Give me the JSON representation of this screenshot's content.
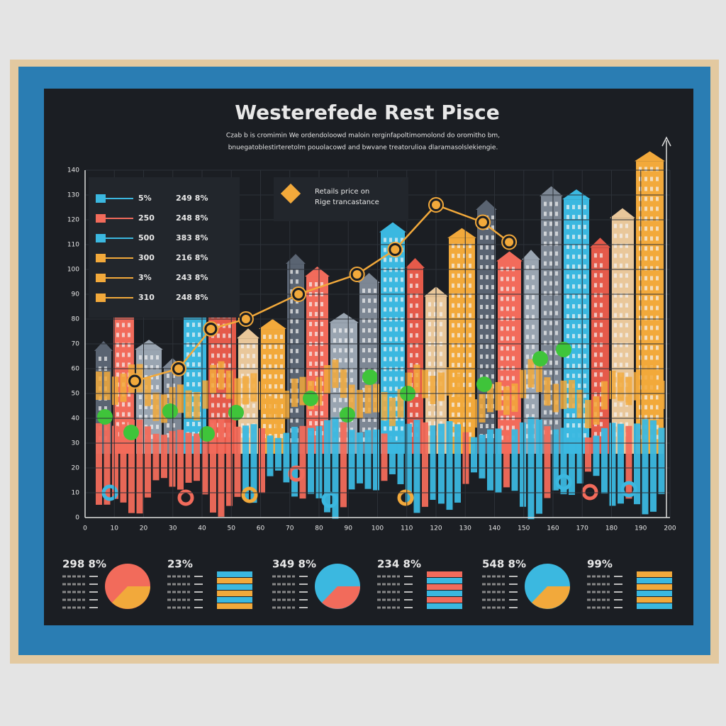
{
  "chart_data": {
    "type": "line",
    "title": "Westerefede Rest Pisce",
    "subtitle": [
      "Czab b is cromimin We ordendoloowd maloin rerginfapoltimomolond do oromitho bm,",
      "bnuegatoblestirteretolm pouolacowd and bwvane treatorulioa dlaramasolslekiengie."
    ],
    "x": [
      17,
      32,
      43,
      55,
      73,
      93,
      106,
      120,
      136,
      145
    ],
    "series": [
      {
        "color": "#f2a93b",
        "values": [
          55,
          60,
          76,
          80,
          90,
          98,
          108,
          126,
          119,
          111
        ]
      }
    ],
    "xlim": [
      0,
      200
    ],
    "ylim": [
      0,
      140
    ],
    "xticks": [
      0,
      10,
      20,
      30,
      40,
      50,
      60,
      70,
      80,
      90,
      100,
      110,
      120,
      130,
      140,
      150,
      160,
      170,
      180,
      190,
      200
    ],
    "yticks": [
      0,
      10,
      20,
      30,
      40,
      50,
      60,
      70,
      80,
      90,
      100,
      110,
      120,
      130,
      140
    ],
    "grid": true,
    "annotation": [
      "Retails price on",
      "Rige trancastance"
    ],
    "legend_rows": [
      {
        "color": "#3bb8e0",
        "label": "5%",
        "value_text": "249 8%"
      },
      {
        "color": "#f26b5b",
        "label": "250",
        "value_text": "248 8%"
      },
      {
        "color": "#3bb8e0",
        "label": "500",
        "value_text": "383 8%"
      },
      {
        "color": "#f2a93b",
        "label": "300",
        "value_text": "216 8%"
      },
      {
        "color": "#f2a93b",
        "label": "3%",
        "value_text": "243 8%"
      },
      {
        "color": "#f2a93b",
        "label": "310",
        "value_text": "248 8%"
      }
    ]
  },
  "panels": [
    {
      "headline": "298 8%",
      "kind": "pie",
      "colors": [
        "#f26b5b",
        "#f2a93b"
      ]
    },
    {
      "headline": "23%",
      "kind": "bars",
      "colors": [
        "#3bb8e0",
        "#f2a93b"
      ]
    },
    {
      "headline": "349 8%",
      "kind": "pie",
      "colors": [
        "#3bb8e0",
        "#f26b5b"
      ]
    },
    {
      "headline": "234 8%",
      "kind": "bars",
      "colors": [
        "#f26b5b",
        "#3bb8e0"
      ]
    },
    {
      "headline": "548 8%",
      "kind": "pie",
      "colors": [
        "#3bb8e0",
        "#f2a93b"
      ]
    },
    {
      "headline": "99%",
      "kind": "bars",
      "colors": [
        "#f2a93b",
        "#3bb8e0"
      ]
    }
  ]
}
